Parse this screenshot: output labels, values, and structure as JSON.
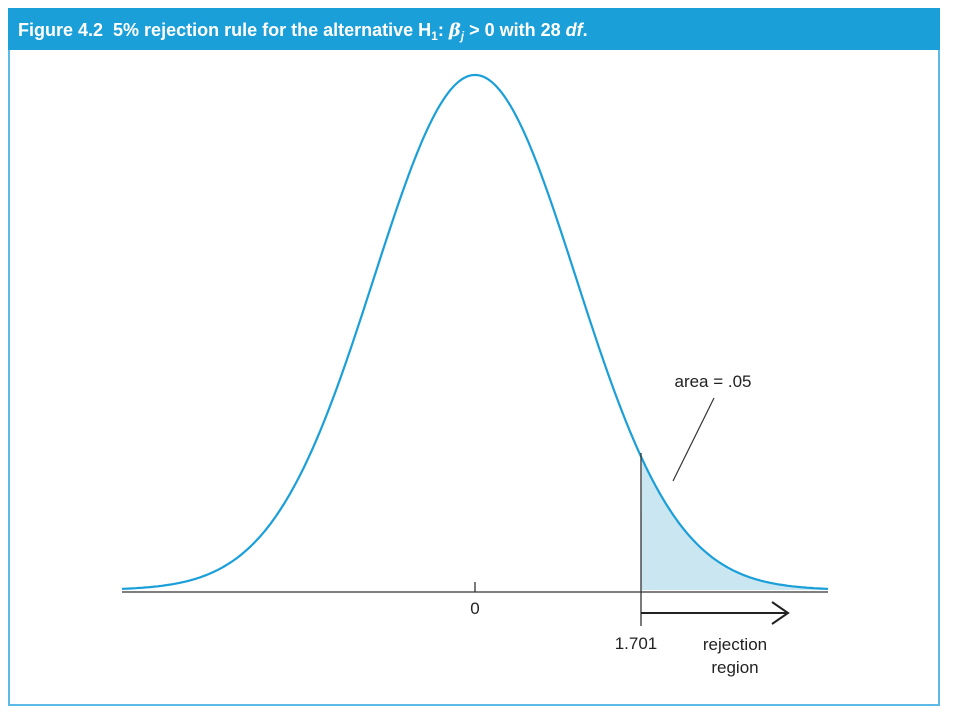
{
  "header": {
    "title": {
      "figure": "Figure 4.2",
      "parts": [
        "5% rejection rule for the alternative H",
        "1",
        ": ",
        "β",
        "j",
        " > 0 with 28 ",
        "df",
        "."
      ]
    }
  },
  "labels": {
    "center": "0",
    "critical_value": "1.701",
    "area": "area = .05",
    "region": [
      "rejection",
      "region"
    ]
  }
}
